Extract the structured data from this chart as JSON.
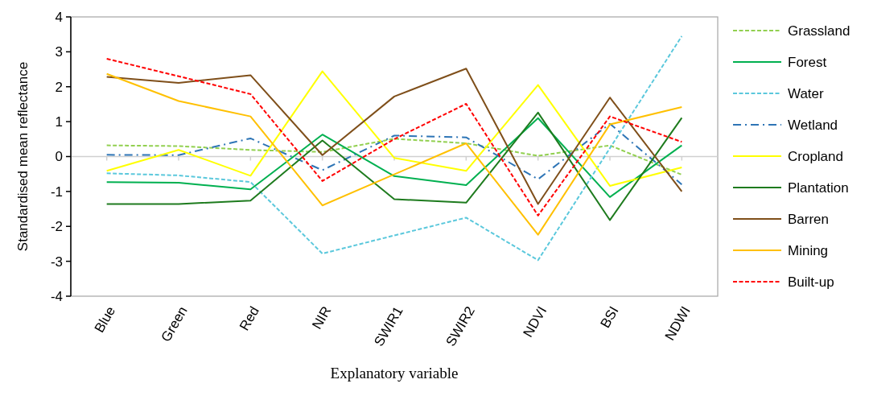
{
  "chart_data": {
    "type": "line",
    "xlabel": "Explanatory variable",
    "ylabel": "Standardised mean reflectance",
    "categories": [
      "Blue",
      "Green",
      "Red",
      "NIR",
      "SWIR1",
      "SWIR2",
      "NDVI",
      "BSI",
      "NDWI"
    ],
    "ylim": [
      -4,
      4
    ],
    "yticks": [
      -4,
      -3,
      -2,
      -1,
      0,
      1,
      2,
      3,
      4
    ],
    "legend": "right",
    "marker": "none",
    "series": [
      {
        "name": "Grassland",
        "color": "#92d050",
        "line_style": "dashed",
        "values": [
          0.32,
          0.3,
          0.19,
          0.13,
          0.51,
          0.38,
          0.02,
          0.32,
          -0.52
        ]
      },
      {
        "name": "Forest",
        "color": "#00b050",
        "line_style": "solid",
        "values": [
          -0.73,
          -0.75,
          -0.94,
          0.63,
          -0.56,
          -0.82,
          1.1,
          -1.16,
          0.32
        ]
      },
      {
        "name": "Water",
        "color": "#5bc8dc",
        "line_style": "dashed",
        "values": [
          -0.48,
          -0.54,
          -0.73,
          -2.78,
          -2.26,
          -1.75,
          -2.97,
          0.24,
          3.45
        ]
      },
      {
        "name": "Wetland",
        "color": "#2e75b6",
        "line_style": "dashdot",
        "values": [
          0.05,
          0.04,
          0.52,
          -0.39,
          0.6,
          0.55,
          -0.65,
          0.94,
          -0.8
        ]
      },
      {
        "name": "Cropland",
        "color": "#ffff00",
        "line_style": "solid",
        "values": [
          -0.41,
          0.19,
          -0.55,
          2.44,
          -0.04,
          -0.41,
          2.05,
          -0.84,
          -0.31
        ]
      },
      {
        "name": "Plantation",
        "color": "#1e7b1e",
        "line_style": "solid",
        "values": [
          -1.36,
          -1.36,
          -1.26,
          0.46,
          -1.22,
          -1.32,
          1.26,
          -1.82,
          1.11
        ]
      },
      {
        "name": "Barren",
        "color": "#7f4f1a",
        "line_style": "solid",
        "values": [
          2.28,
          2.11,
          2.33,
          0.04,
          1.72,
          2.52,
          -1.36,
          1.69,
          -1.0
        ]
      },
      {
        "name": "Mining",
        "color": "#ffc000",
        "line_style": "solid",
        "values": [
          2.37,
          1.59,
          1.15,
          -1.4,
          -0.51,
          0.38,
          -2.24,
          0.92,
          1.42
        ]
      },
      {
        "name": "Built-up",
        "color": "#ff0000",
        "line_style": "dashed",
        "values": [
          2.8,
          2.3,
          1.79,
          -0.7,
          0.5,
          1.51,
          -1.69,
          1.15,
          0.42
        ]
      }
    ]
  }
}
